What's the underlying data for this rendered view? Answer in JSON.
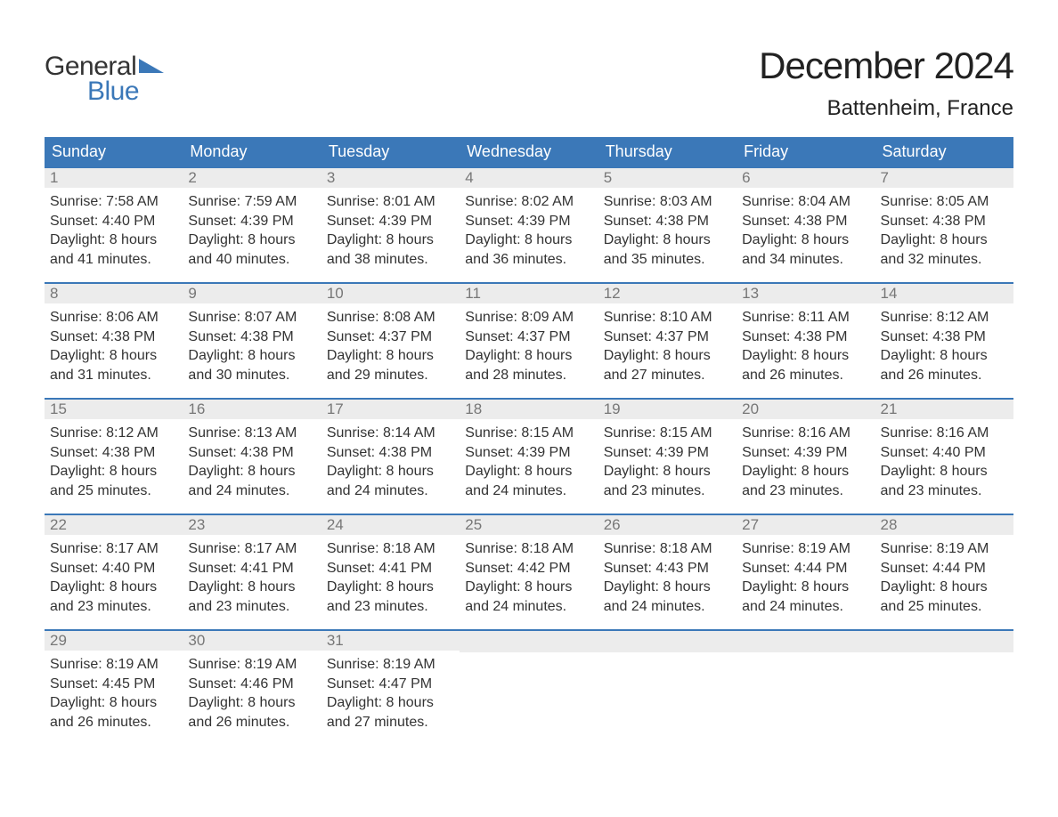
{
  "colors": {
    "header_bg": "#3b78b8",
    "header_text": "#ffffff",
    "daynum_bg": "#ececec",
    "daynum_text": "#777777",
    "body_text": "#333333",
    "week_border": "#3b78b8",
    "page_bg": "#ffffff",
    "logo_blue": "#3b78b8"
  },
  "typography": {
    "title_fontsize": 42,
    "location_fontsize": 24,
    "dayheader_fontsize": 18,
    "body_fontsize": 16,
    "font_family": "Arial"
  },
  "logo": {
    "line1": "General",
    "line2": "Blue"
  },
  "title": "December 2024",
  "location": "Battenheim, France",
  "day_names": [
    "Sunday",
    "Monday",
    "Tuesday",
    "Wednesday",
    "Thursday",
    "Friday",
    "Saturday"
  ],
  "weeks": [
    [
      {
        "num": "1",
        "sunrise": "Sunrise: 7:58 AM",
        "sunset": "Sunset: 4:40 PM",
        "dl1": "Daylight: 8 hours",
        "dl2": "and 41 minutes."
      },
      {
        "num": "2",
        "sunrise": "Sunrise: 7:59 AM",
        "sunset": "Sunset: 4:39 PM",
        "dl1": "Daylight: 8 hours",
        "dl2": "and 40 minutes."
      },
      {
        "num": "3",
        "sunrise": "Sunrise: 8:01 AM",
        "sunset": "Sunset: 4:39 PM",
        "dl1": "Daylight: 8 hours",
        "dl2": "and 38 minutes."
      },
      {
        "num": "4",
        "sunrise": "Sunrise: 8:02 AM",
        "sunset": "Sunset: 4:39 PM",
        "dl1": "Daylight: 8 hours",
        "dl2": "and 36 minutes."
      },
      {
        "num": "5",
        "sunrise": "Sunrise: 8:03 AM",
        "sunset": "Sunset: 4:38 PM",
        "dl1": "Daylight: 8 hours",
        "dl2": "and 35 minutes."
      },
      {
        "num": "6",
        "sunrise": "Sunrise: 8:04 AM",
        "sunset": "Sunset: 4:38 PM",
        "dl1": "Daylight: 8 hours",
        "dl2": "and 34 minutes."
      },
      {
        "num": "7",
        "sunrise": "Sunrise: 8:05 AM",
        "sunset": "Sunset: 4:38 PM",
        "dl1": "Daylight: 8 hours",
        "dl2": "and 32 minutes."
      }
    ],
    [
      {
        "num": "8",
        "sunrise": "Sunrise: 8:06 AM",
        "sunset": "Sunset: 4:38 PM",
        "dl1": "Daylight: 8 hours",
        "dl2": "and 31 minutes."
      },
      {
        "num": "9",
        "sunrise": "Sunrise: 8:07 AM",
        "sunset": "Sunset: 4:38 PM",
        "dl1": "Daylight: 8 hours",
        "dl2": "and 30 minutes."
      },
      {
        "num": "10",
        "sunrise": "Sunrise: 8:08 AM",
        "sunset": "Sunset: 4:37 PM",
        "dl1": "Daylight: 8 hours",
        "dl2": "and 29 minutes."
      },
      {
        "num": "11",
        "sunrise": "Sunrise: 8:09 AM",
        "sunset": "Sunset: 4:37 PM",
        "dl1": "Daylight: 8 hours",
        "dl2": "and 28 minutes."
      },
      {
        "num": "12",
        "sunrise": "Sunrise: 8:10 AM",
        "sunset": "Sunset: 4:37 PM",
        "dl1": "Daylight: 8 hours",
        "dl2": "and 27 minutes."
      },
      {
        "num": "13",
        "sunrise": "Sunrise: 8:11 AM",
        "sunset": "Sunset: 4:38 PM",
        "dl1": "Daylight: 8 hours",
        "dl2": "and 26 minutes."
      },
      {
        "num": "14",
        "sunrise": "Sunrise: 8:12 AM",
        "sunset": "Sunset: 4:38 PM",
        "dl1": "Daylight: 8 hours",
        "dl2": "and 26 minutes."
      }
    ],
    [
      {
        "num": "15",
        "sunrise": "Sunrise: 8:12 AM",
        "sunset": "Sunset: 4:38 PM",
        "dl1": "Daylight: 8 hours",
        "dl2": "and 25 minutes."
      },
      {
        "num": "16",
        "sunrise": "Sunrise: 8:13 AM",
        "sunset": "Sunset: 4:38 PM",
        "dl1": "Daylight: 8 hours",
        "dl2": "and 24 minutes."
      },
      {
        "num": "17",
        "sunrise": "Sunrise: 8:14 AM",
        "sunset": "Sunset: 4:38 PM",
        "dl1": "Daylight: 8 hours",
        "dl2": "and 24 minutes."
      },
      {
        "num": "18",
        "sunrise": "Sunrise: 8:15 AM",
        "sunset": "Sunset: 4:39 PM",
        "dl1": "Daylight: 8 hours",
        "dl2": "and 24 minutes."
      },
      {
        "num": "19",
        "sunrise": "Sunrise: 8:15 AM",
        "sunset": "Sunset: 4:39 PM",
        "dl1": "Daylight: 8 hours",
        "dl2": "and 23 minutes."
      },
      {
        "num": "20",
        "sunrise": "Sunrise: 8:16 AM",
        "sunset": "Sunset: 4:39 PM",
        "dl1": "Daylight: 8 hours",
        "dl2": "and 23 minutes."
      },
      {
        "num": "21",
        "sunrise": "Sunrise: 8:16 AM",
        "sunset": "Sunset: 4:40 PM",
        "dl1": "Daylight: 8 hours",
        "dl2": "and 23 minutes."
      }
    ],
    [
      {
        "num": "22",
        "sunrise": "Sunrise: 8:17 AM",
        "sunset": "Sunset: 4:40 PM",
        "dl1": "Daylight: 8 hours",
        "dl2": "and 23 minutes."
      },
      {
        "num": "23",
        "sunrise": "Sunrise: 8:17 AM",
        "sunset": "Sunset: 4:41 PM",
        "dl1": "Daylight: 8 hours",
        "dl2": "and 23 minutes."
      },
      {
        "num": "24",
        "sunrise": "Sunrise: 8:18 AM",
        "sunset": "Sunset: 4:41 PM",
        "dl1": "Daylight: 8 hours",
        "dl2": "and 23 minutes."
      },
      {
        "num": "25",
        "sunrise": "Sunrise: 8:18 AM",
        "sunset": "Sunset: 4:42 PM",
        "dl1": "Daylight: 8 hours",
        "dl2": "and 24 minutes."
      },
      {
        "num": "26",
        "sunrise": "Sunrise: 8:18 AM",
        "sunset": "Sunset: 4:43 PM",
        "dl1": "Daylight: 8 hours",
        "dl2": "and 24 minutes."
      },
      {
        "num": "27",
        "sunrise": "Sunrise: 8:19 AM",
        "sunset": "Sunset: 4:44 PM",
        "dl1": "Daylight: 8 hours",
        "dl2": "and 24 minutes."
      },
      {
        "num": "28",
        "sunrise": "Sunrise: 8:19 AM",
        "sunset": "Sunset: 4:44 PM",
        "dl1": "Daylight: 8 hours",
        "dl2": "and 25 minutes."
      }
    ],
    [
      {
        "num": "29",
        "sunrise": "Sunrise: 8:19 AM",
        "sunset": "Sunset: 4:45 PM",
        "dl1": "Daylight: 8 hours",
        "dl2": "and 26 minutes."
      },
      {
        "num": "30",
        "sunrise": "Sunrise: 8:19 AM",
        "sunset": "Sunset: 4:46 PM",
        "dl1": "Daylight: 8 hours",
        "dl2": "and 26 minutes."
      },
      {
        "num": "31",
        "sunrise": "Sunrise: 8:19 AM",
        "sunset": "Sunset: 4:47 PM",
        "dl1": "Daylight: 8 hours",
        "dl2": "and 27 minutes."
      },
      {
        "empty": true
      },
      {
        "empty": true
      },
      {
        "empty": true
      },
      {
        "empty": true
      }
    ]
  ]
}
